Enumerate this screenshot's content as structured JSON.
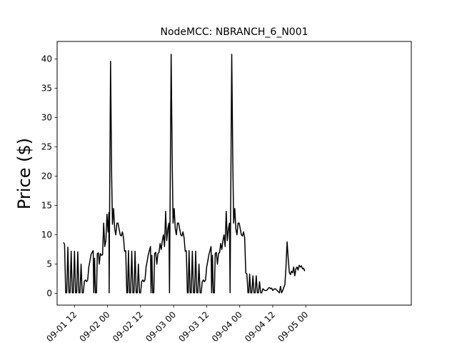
{
  "chart_data": {
    "type": "line",
    "title": "NodeMCC: NBRANCH_6_N001",
    "xlabel": "",
    "ylabel": "Price ($)",
    "x_axis": "datetime (hours)",
    "x_start": "09-01 00:00",
    "xlim_hours": [
      5.7,
      134.3
    ],
    "ylim": [
      -2,
      43
    ],
    "yticks": [
      0,
      5,
      10,
      15,
      20,
      25,
      30,
      35,
      40
    ],
    "xticks": [
      {
        "label": "09-01 12",
        "hour": 12
      },
      {
        "label": "09-02 00",
        "hour": 24
      },
      {
        "label": "09-02 12",
        "hour": 36
      },
      {
        "label": "09-03 00",
        "hour": 48
      },
      {
        "label": "09-03 12",
        "hour": 60
      },
      {
        "label": "09-04 00",
        "hour": 72
      },
      {
        "label": "09-04 12",
        "hour": 84
      },
      {
        "label": "09-05 00",
        "hour": 96
      }
    ],
    "grid": false,
    "legend": "none",
    "series": [
      {
        "color": "#000000",
        "points": [
          [
            8.0,
            8.7
          ],
          [
            8.4,
            8.4
          ],
          [
            8.8,
            0.1
          ],
          [
            9.2,
            0.1
          ],
          [
            9.6,
            7.9
          ],
          [
            10.0,
            0.1
          ],
          [
            10.4,
            0.1
          ],
          [
            10.8,
            7.2
          ],
          [
            11.2,
            0.1
          ],
          [
            11.6,
            0.1
          ],
          [
            12.0,
            7.2
          ],
          [
            12.4,
            0.1
          ],
          [
            12.8,
            0.1
          ],
          [
            13.2,
            7.1
          ],
          [
            13.6,
            0.1
          ],
          [
            14.0,
            0.1
          ],
          [
            14.4,
            5.0
          ],
          [
            14.8,
            0.1
          ],
          [
            15.2,
            0.1
          ],
          [
            15.6,
            2.1
          ],
          [
            16.0,
            2.3
          ],
          [
            16.4,
            2.0
          ],
          [
            16.8,
            2.3
          ],
          [
            17.2,
            4.5
          ],
          [
            17.6,
            5.5
          ],
          [
            18.0,
            6.6
          ],
          [
            18.4,
            7.0
          ],
          [
            18.8,
            7.3
          ],
          [
            19.0,
            0.1
          ],
          [
            19.3,
            6.0
          ],
          [
            19.6,
            0.1
          ],
          [
            20.0,
            0.1
          ],
          [
            20.3,
            6.8
          ],
          [
            20.7,
            6.9
          ],
          [
            21.0,
            5.0
          ],
          [
            21.4,
            6.8
          ],
          [
            21.8,
            6.5
          ],
          [
            22.2,
            6.6
          ],
          [
            22.6,
            12.0
          ],
          [
            23.0,
            8.0
          ],
          [
            23.4,
            9.0
          ],
          [
            23.8,
            13.5
          ],
          [
            24.2,
            10.5
          ],
          [
            24.5,
            13.8
          ],
          [
            24.6,
            0.1
          ],
          [
            24.7,
            10.0
          ],
          [
            25.1,
            39.6
          ],
          [
            25.5,
            20.0
          ],
          [
            25.8,
            11.8
          ],
          [
            26.2,
            14.5
          ],
          [
            26.6,
            11.0
          ],
          [
            27.0,
            10.0
          ],
          [
            27.4,
            12.0
          ],
          [
            27.8,
            12.0
          ],
          [
            28.2,
            11.0
          ],
          [
            28.6,
            10.0
          ],
          [
            29.0,
            9.8
          ],
          [
            29.4,
            10.5
          ],
          [
            29.8,
            9.5
          ],
          [
            30.2,
            7.2
          ],
          [
            30.6,
            7.3
          ],
          [
            31.0,
            0.1
          ],
          [
            31.3,
            0.1
          ],
          [
            31.6,
            7.3
          ],
          [
            32.0,
            0.1
          ],
          [
            32.4,
            0.1
          ],
          [
            32.8,
            7.2
          ],
          [
            33.2,
            0.1
          ],
          [
            33.6,
            0.1
          ],
          [
            34.0,
            7.2
          ],
          [
            34.4,
            0.1
          ],
          [
            34.8,
            0.1
          ],
          [
            35.2,
            5.0
          ],
          [
            35.6,
            0.1
          ],
          [
            36.0,
            0.1
          ],
          [
            36.4,
            2.0
          ],
          [
            36.8,
            2.3
          ],
          [
            37.2,
            2.0
          ],
          [
            37.6,
            2.3
          ],
          [
            38.0,
            4.5
          ],
          [
            38.4,
            5.5
          ],
          [
            38.8,
            6.6
          ],
          [
            39.2,
            7.3
          ],
          [
            39.6,
            8.0
          ],
          [
            39.8,
            0.1
          ],
          [
            40.1,
            6.5
          ],
          [
            40.4,
            0.1
          ],
          [
            40.8,
            0.1
          ],
          [
            41.1,
            6.8
          ],
          [
            41.5,
            7.0
          ],
          [
            41.9,
            5.0
          ],
          [
            42.3,
            6.8
          ],
          [
            42.7,
            7.0
          ],
          [
            43.1,
            8.5
          ],
          [
            43.5,
            7.5
          ],
          [
            43.9,
            9.0
          ],
          [
            44.3,
            10.0
          ],
          [
            44.7,
            8.0
          ],
          [
            45.1,
            14.0
          ],
          [
            45.5,
            9.0
          ],
          [
            45.9,
            11.0
          ],
          [
            46.3,
            12.0
          ],
          [
            46.5,
            0.1
          ],
          [
            46.7,
            14.0
          ],
          [
            47.1,
            40.8
          ],
          [
            47.5,
            22.0
          ],
          [
            47.8,
            12.0
          ],
          [
            48.2,
            14.5
          ],
          [
            48.6,
            11.0
          ],
          [
            49.0,
            10.0
          ],
          [
            49.4,
            12.0
          ],
          [
            49.8,
            12.0
          ],
          [
            50.2,
            11.0
          ],
          [
            50.6,
            10.0
          ],
          [
            51.0,
            9.8
          ],
          [
            51.4,
            10.5
          ],
          [
            51.8,
            9.5
          ],
          [
            52.2,
            7.2
          ],
          [
            52.6,
            7.3
          ],
          [
            53.0,
            0.1
          ],
          [
            53.3,
            0.1
          ],
          [
            53.6,
            7.3
          ],
          [
            54.0,
            0.1
          ],
          [
            54.4,
            0.1
          ],
          [
            54.8,
            7.2
          ],
          [
            55.2,
            0.1
          ],
          [
            55.6,
            0.1
          ],
          [
            56.0,
            7.2
          ],
          [
            56.4,
            0.1
          ],
          [
            56.8,
            0.1
          ],
          [
            57.2,
            5.0
          ],
          [
            57.6,
            0.1
          ],
          [
            58.0,
            0.1
          ],
          [
            58.4,
            2.0
          ],
          [
            58.8,
            2.3
          ],
          [
            59.2,
            2.0
          ],
          [
            59.6,
            2.3
          ],
          [
            60.0,
            4.5
          ],
          [
            60.4,
            5.5
          ],
          [
            60.8,
            6.6
          ],
          [
            61.2,
            7.3
          ],
          [
            61.6,
            8.0
          ],
          [
            61.8,
            0.1
          ],
          [
            62.1,
            6.5
          ],
          [
            62.4,
            0.1
          ],
          [
            62.8,
            0.1
          ],
          [
            63.1,
            6.8
          ],
          [
            63.5,
            7.0
          ],
          [
            63.9,
            5.0
          ],
          [
            64.3,
            6.8
          ],
          [
            64.7,
            7.0
          ],
          [
            65.1,
            8.5
          ],
          [
            65.5,
            7.5
          ],
          [
            65.9,
            9.0
          ],
          [
            66.3,
            10.0
          ],
          [
            66.7,
            8.0
          ],
          [
            67.1,
            14.0
          ],
          [
            67.5,
            9.0
          ],
          [
            67.9,
            11.0
          ],
          [
            68.3,
            12.0
          ],
          [
            68.5,
            0.1
          ],
          [
            68.7,
            14.0
          ],
          [
            69.1,
            40.8
          ],
          [
            69.5,
            22.0
          ],
          [
            69.8,
            12.0
          ],
          [
            70.2,
            14.5
          ],
          [
            70.6,
            11.0
          ],
          [
            71.0,
            10.0
          ],
          [
            71.4,
            12.0
          ],
          [
            71.8,
            12.0
          ],
          [
            72.2,
            11.0
          ],
          [
            72.6,
            10.0
          ],
          [
            73.0,
            9.8
          ],
          [
            73.4,
            10.5
          ],
          [
            73.8,
            9.5
          ],
          [
            74.2,
            3.5
          ],
          [
            74.6,
            3.3
          ],
          [
            75.0,
            0.1
          ],
          [
            75.3,
            0.1
          ],
          [
            75.6,
            3.3
          ],
          [
            76.0,
            0.1
          ],
          [
            76.4,
            0.1
          ],
          [
            76.8,
            3.0
          ],
          [
            77.2,
            0.1
          ],
          [
            77.6,
            0.1
          ],
          [
            78.0,
            3.0
          ],
          [
            78.4,
            0.1
          ],
          [
            78.8,
            0.1
          ],
          [
            79.2,
            2.0
          ],
          [
            79.6,
            0.1
          ],
          [
            80.0,
            0.1
          ],
          [
            80.4,
            0.8
          ],
          [
            80.8,
            0.6
          ],
          [
            81.2,
            0.5
          ],
          [
            81.6,
            0.5
          ],
          [
            82.0,
            0.6
          ],
          [
            82.4,
            0.9
          ],
          [
            82.8,
            1.0
          ],
          [
            83.2,
            0.8
          ],
          [
            83.6,
            0.9
          ],
          [
            84.0,
            0.5
          ],
          [
            84.4,
            0.7
          ],
          [
            84.8,
            0.8
          ],
          [
            85.2,
            0.7
          ],
          [
            85.6,
            0.5
          ],
          [
            86.0,
            0.3
          ],
          [
            86.4,
            0.1
          ],
          [
            86.8,
            1.2
          ],
          [
            87.2,
            0.1
          ],
          [
            87.6,
            0.5
          ],
          [
            88.0,
            1.0
          ],
          [
            88.4,
            1.5
          ],
          [
            88.8,
            4.5
          ],
          [
            89.2,
            8.8
          ],
          [
            89.6,
            6.0
          ],
          [
            90.0,
            3.6
          ],
          [
            90.4,
            3.2
          ],
          [
            90.8,
            3.8
          ],
          [
            91.2,
            3.5
          ],
          [
            91.6,
            4.5
          ],
          [
            92.0,
            3.0
          ],
          [
            92.4,
            4.2
          ],
          [
            92.8,
            4.5
          ],
          [
            93.2,
            4.0
          ],
          [
            93.6,
            4.8
          ],
          [
            94.0,
            4.5
          ],
          [
            94.4,
            4.7
          ],
          [
            94.8,
            4.2
          ],
          [
            95.2,
            4.3
          ],
          [
            95.6,
            3.8
          ]
        ]
      }
    ]
  }
}
